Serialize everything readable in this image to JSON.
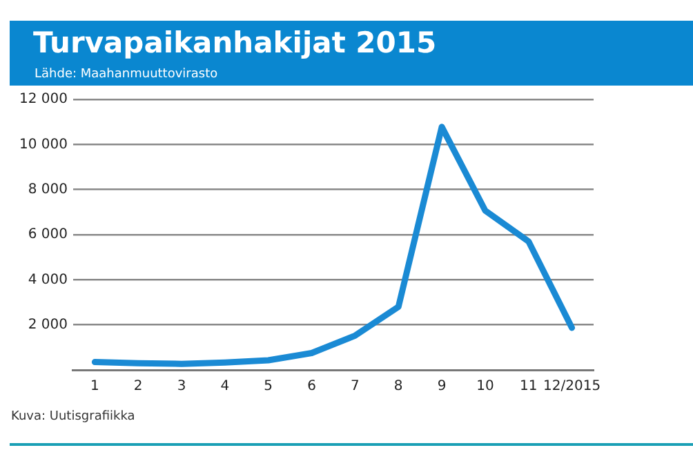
{
  "chart_data": {
    "type": "line",
    "title": "Turvapaikanhakijat 2015",
    "subtitle": "Lähde: Maahanmuuttovirasto",
    "annotations": [
      "Kuva: Uutisgrafiikka"
    ],
    "categories": [
      "1",
      "2",
      "3",
      "4",
      "5",
      "6",
      "7",
      "8",
      "9",
      "10",
      "11",
      "12/2015"
    ],
    "series": [
      {
        "color": "#1a8ad4",
        "values": [
          350,
          300,
          270,
          330,
          430,
          750,
          1520,
          2800,
          10780,
          7070,
          5700,
          1870
        ]
      }
    ],
    "ylim": [
      0,
      12000
    ],
    "yticks": [
      {
        "value": 2000,
        "label": "2 000"
      },
      {
        "value": 4000,
        "label": "4 000"
      },
      {
        "value": 6000,
        "label": "6 000"
      },
      {
        "value": 8000,
        "label": "8 000"
      },
      {
        "value": 10000,
        "label": "10 000"
      },
      {
        "value": 12000,
        "label": "12 000"
      }
    ],
    "grid": "y",
    "legend": false,
    "marker": "none",
    "line_style": "solid"
  }
}
